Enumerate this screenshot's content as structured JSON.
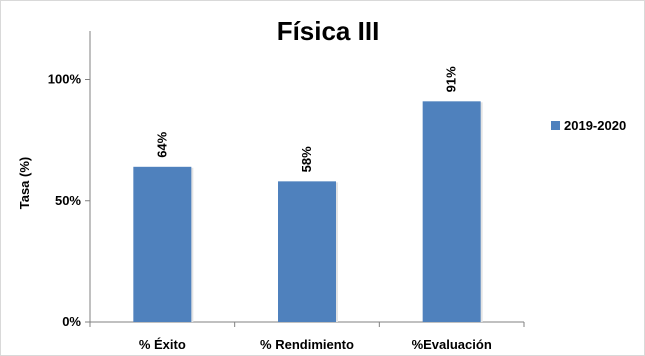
{
  "chart_data": {
    "type": "bar",
    "title": "Física III",
    "ylabel": "Tasa (%)",
    "xlabel": "",
    "categories": [
      "% Éxito",
      "% Rendimiento",
      "%Evaluación"
    ],
    "series": [
      {
        "name": "2019-2020",
        "values": [
          64,
          58,
          91
        ],
        "data_labels": [
          "64%",
          "58%",
          "91%"
        ],
        "color": "#4f81bd"
      }
    ],
    "ylim": [
      0,
      120
    ],
    "y_ticks": [
      {
        "value": 0,
        "label": "0%"
      },
      {
        "value": 50,
        "label": "50%"
      },
      {
        "value": 100,
        "label": "100%"
      }
    ],
    "grid": false,
    "legend_position": "right"
  }
}
